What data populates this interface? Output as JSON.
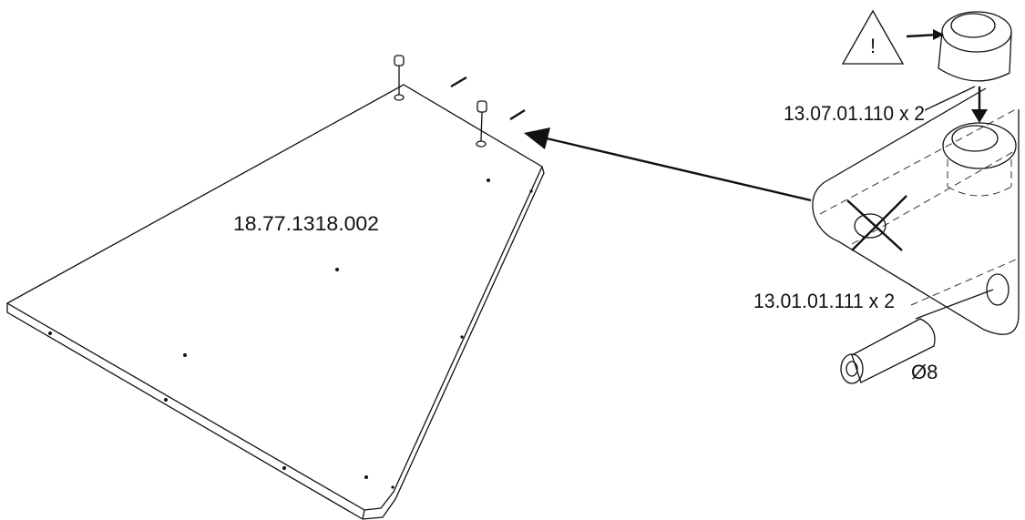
{
  "panel": {
    "code": "18.77.1318.002"
  },
  "detail": {
    "cam_lock": "13.07.01.110 x 2",
    "dowel": "13.01.01.111 x 2",
    "dowel_diameter": "Ø8",
    "warning": "!"
  }
}
